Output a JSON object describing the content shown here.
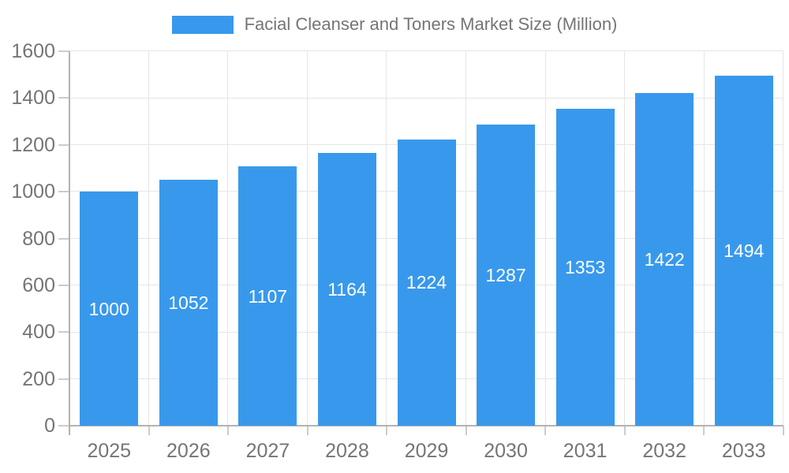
{
  "chart_data": {
    "type": "bar",
    "title": "Facial Cleanser and Toners Market Size (Million)",
    "legend_position": "top",
    "categories": [
      "2025",
      "2026",
      "2027",
      "2028",
      "2029",
      "2030",
      "2031",
      "2032",
      "2033"
    ],
    "values": [
      1000,
      1052,
      1107,
      1164,
      1224,
      1287,
      1353,
      1422,
      1494
    ],
    "xlabel": "",
    "ylabel": "",
    "ylim": [
      0,
      1600
    ],
    "ytick_interval": 200,
    "yticks": [
      0,
      200,
      400,
      600,
      800,
      1000,
      1200,
      1400,
      1600
    ],
    "grid": true,
    "bar_labels_inside": true,
    "colors": {
      "bar": "#3899EC",
      "axis": "#b3b3b3",
      "grid": "#e6e6e6",
      "tick": "#cccccc",
      "axis_text": "#757575",
      "bar_label_text": "#ffffff",
      "background": "#ffffff"
    }
  }
}
